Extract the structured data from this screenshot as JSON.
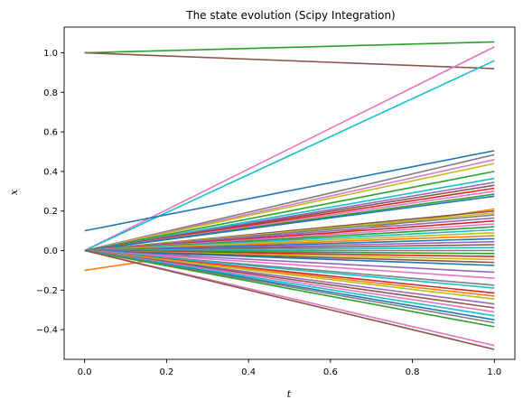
{
  "chart_data": {
    "type": "line",
    "title": "The state evolution (Scipy Integration)",
    "xlabel": "t",
    "ylabel": "x",
    "xlim": [
      -0.05,
      1.05
    ],
    "ylim": [
      -0.55,
      1.13
    ],
    "xticks": [
      0.0,
      0.2,
      0.4,
      0.6,
      0.8,
      1.0
    ],
    "xtick_labels": [
      "0.0",
      "0.2",
      "0.4",
      "0.6",
      "0.8",
      "1.0"
    ],
    "yticks": [
      -0.4,
      -0.2,
      0.0,
      0.2,
      0.4,
      0.6,
      0.8,
      1.0
    ],
    "ytick_labels": [
      "−0.4",
      "−0.2",
      "0.0",
      "0.2",
      "0.4",
      "0.6",
      "0.8",
      "1.0"
    ],
    "grid": false,
    "legend": "none",
    "palette": [
      "#1f77b4",
      "#ff7f0e",
      "#2ca02c",
      "#d62728",
      "#9467bd",
      "#8c564b",
      "#e377c2",
      "#7f7f7f",
      "#bcbd22",
      "#17becf"
    ],
    "x": [
      0.0,
      1.0
    ],
    "series": [
      {
        "values": [
          1.0,
          1.055
        ],
        "color": "#2ca02c"
      },
      {
        "values": [
          1.0,
          0.92
        ],
        "color": "#8c564b"
      },
      {
        "values": [
          0.0,
          1.03
        ],
        "color": "#e377c2"
      },
      {
        "values": [
          0.0,
          0.96
        ],
        "color": "#17becf"
      },
      {
        "values": [
          0.1,
          0.505
        ],
        "color": "#1f77b4"
      },
      {
        "values": [
          -0.1,
          0.21
        ],
        "color": "#ff7f0e"
      },
      {
        "values": [
          0.0,
          0.485
        ],
        "color": "#7f7f7f"
      },
      {
        "values": [
          0.0,
          0.46
        ],
        "color": "#e377c2"
      },
      {
        "values": [
          0.0,
          0.44
        ],
        "color": "#bcbd22"
      },
      {
        "values": [
          0.0,
          0.4
        ],
        "color": "#2ca02c"
      },
      {
        "values": [
          0.0,
          0.365
        ],
        "color": "#17becf"
      },
      {
        "values": [
          0.0,
          0.345
        ],
        "color": "#9467bd"
      },
      {
        "values": [
          0.0,
          0.33
        ],
        "color": "#8c564b"
      },
      {
        "values": [
          0.0,
          0.315
        ],
        "color": "#d62728"
      },
      {
        "values": [
          0.0,
          0.3
        ],
        "color": "#e377c2"
      },
      {
        "values": [
          0.0,
          0.285
        ],
        "color": "#2ca02c"
      },
      {
        "values": [
          0.0,
          0.275
        ],
        "color": "#1f77b4"
      },
      {
        "values": [
          0.0,
          0.2
        ],
        "color": "#8c564b"
      },
      {
        "values": [
          0.0,
          0.19
        ],
        "color": "#bcbd22"
      },
      {
        "values": [
          0.0,
          0.18
        ],
        "color": "#7f7f7f"
      },
      {
        "values": [
          0.0,
          0.165
        ],
        "color": "#9467bd"
      },
      {
        "values": [
          0.0,
          0.15
        ],
        "color": "#d62728"
      },
      {
        "values": [
          0.0,
          0.135
        ],
        "color": "#e377c2"
      },
      {
        "values": [
          0.0,
          0.12
        ],
        "color": "#2ca02c"
      },
      {
        "values": [
          0.0,
          0.105
        ],
        "color": "#17becf"
      },
      {
        "values": [
          0.0,
          0.09
        ],
        "color": "#bcbd22"
      },
      {
        "values": [
          0.0,
          0.075
        ],
        "color": "#ff7f0e"
      },
      {
        "values": [
          0.0,
          0.06
        ],
        "color": "#1f77b4"
      },
      {
        "values": [
          0.0,
          0.045
        ],
        "color": "#9467bd"
      },
      {
        "values": [
          0.0,
          0.03
        ],
        "color": "#8c564b"
      },
      {
        "values": [
          0.0,
          0.015
        ],
        "color": "#17becf"
      },
      {
        "values": [
          0.0,
          0.0
        ],
        "color": "#7f7f7f"
      },
      {
        "values": [
          0.0,
          -0.015
        ],
        "color": "#2ca02c"
      },
      {
        "values": [
          0.0,
          -0.03
        ],
        "color": "#d62728"
      },
      {
        "values": [
          0.0,
          -0.045
        ],
        "color": "#bcbd22"
      },
      {
        "values": [
          0.0,
          -0.06
        ],
        "color": "#8c564b"
      },
      {
        "values": [
          0.0,
          -0.075
        ],
        "color": "#1f77b4"
      },
      {
        "values": [
          0.0,
          -0.11
        ],
        "color": "#9467bd"
      },
      {
        "values": [
          0.0,
          -0.14
        ],
        "color": "#e377c2"
      },
      {
        "values": [
          0.0,
          -0.175
        ],
        "color": "#7f7f7f"
      },
      {
        "values": [
          0.0,
          -0.19
        ],
        "color": "#17becf"
      },
      {
        "values": [
          0.0,
          -0.215
        ],
        "color": "#d62728"
      },
      {
        "values": [
          0.0,
          -0.23
        ],
        "color": "#ff7f0e"
      },
      {
        "values": [
          0.0,
          -0.245
        ],
        "color": "#bcbd22"
      },
      {
        "values": [
          0.0,
          -0.27
        ],
        "color": "#9467bd"
      },
      {
        "values": [
          0.0,
          -0.29
        ],
        "color": "#8c564b"
      },
      {
        "values": [
          0.0,
          -0.31
        ],
        "color": "#e377c2"
      },
      {
        "values": [
          0.0,
          -0.33
        ],
        "color": "#17becf"
      },
      {
        "values": [
          0.0,
          -0.35
        ],
        "color": "#1f77b4"
      },
      {
        "values": [
          0.0,
          -0.365
        ],
        "color": "#7f7f7f"
      },
      {
        "values": [
          0.0,
          -0.385
        ],
        "color": "#2ca02c"
      },
      {
        "values": [
          0.0,
          -0.48
        ],
        "color": "#e377c2"
      },
      {
        "values": [
          0.0,
          -0.5
        ],
        "color": "#8c564b"
      }
    ]
  }
}
